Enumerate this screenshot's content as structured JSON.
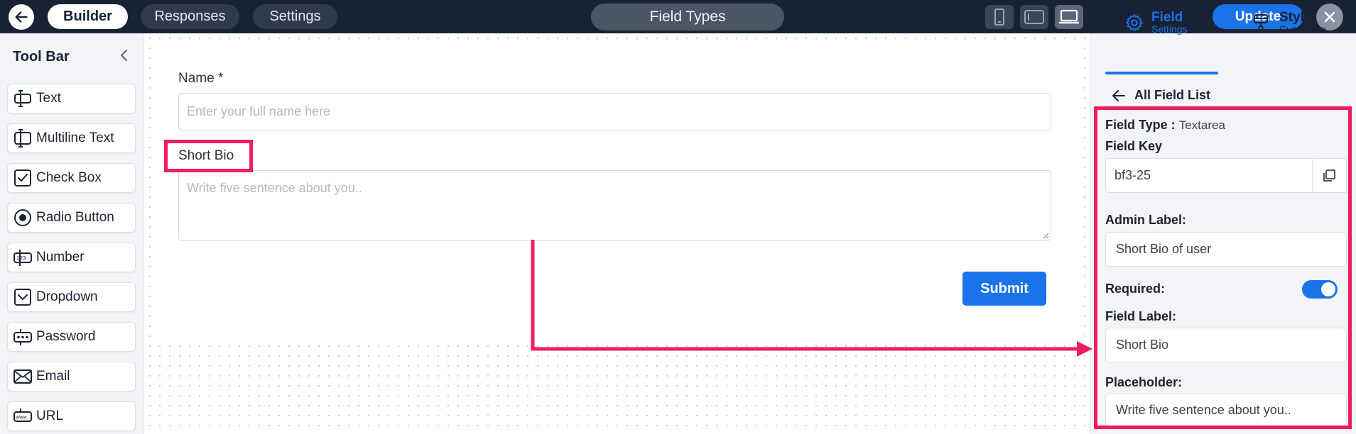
{
  "topbar": {
    "tabs": [
      {
        "label": "Builder",
        "active": true
      },
      {
        "label": "Responses",
        "active": false
      },
      {
        "label": "Settings",
        "active": false
      }
    ],
    "center_title": "Field Types",
    "devices": [
      "phone-icon",
      "tablet-icon",
      "desktop-icon"
    ],
    "active_device": "desktop-icon",
    "update_label": "Update"
  },
  "toolbar": {
    "title": "Tool Bar",
    "items": [
      {
        "label": "Text",
        "icon": "text-field-icon"
      },
      {
        "label": "Multiline Text",
        "icon": "multiline-text-icon"
      },
      {
        "label": "Check Box",
        "icon": "checkbox-icon"
      },
      {
        "label": "Radio Button",
        "icon": "radio-button-icon"
      },
      {
        "label": "Number",
        "icon": "number-icon"
      },
      {
        "label": "Dropdown",
        "icon": "dropdown-icon"
      },
      {
        "label": "Password",
        "icon": "password-icon"
      },
      {
        "label": "Email",
        "icon": "email-icon"
      },
      {
        "label": "URL",
        "icon": "url-icon"
      }
    ]
  },
  "form": {
    "name_label": "Name *",
    "name_placeholder": "Enter your full name here",
    "bio_label": "Short Bio",
    "bio_placeholder": "Write five sentence about you..",
    "submit_label": "Submit"
  },
  "panel": {
    "tabs": [
      {
        "title": "Field",
        "subtitle": "Settings",
        "active": true
      },
      {
        "title": "Style",
        "subtitle": "Customize",
        "active": false
      }
    ],
    "back_label": "All Field List",
    "field_type_label": "Field Type :",
    "field_type_value": "Textarea",
    "field_key_label": "Field Key",
    "field_key_value": "bf3-25",
    "admin_label_label": "Admin Label:",
    "admin_label_value": "Short Bio of user",
    "required_label": "Required:",
    "required_on": true,
    "field_label_label": "Field Label:",
    "field_label_value": "Short Bio",
    "placeholder_label": "Placeholder:",
    "placeholder_value": "Write five sentence about you.."
  },
  "colors": {
    "topbar_bg": "#182234",
    "accent": "#1a73e8",
    "highlight": "#ee1e5e"
  }
}
